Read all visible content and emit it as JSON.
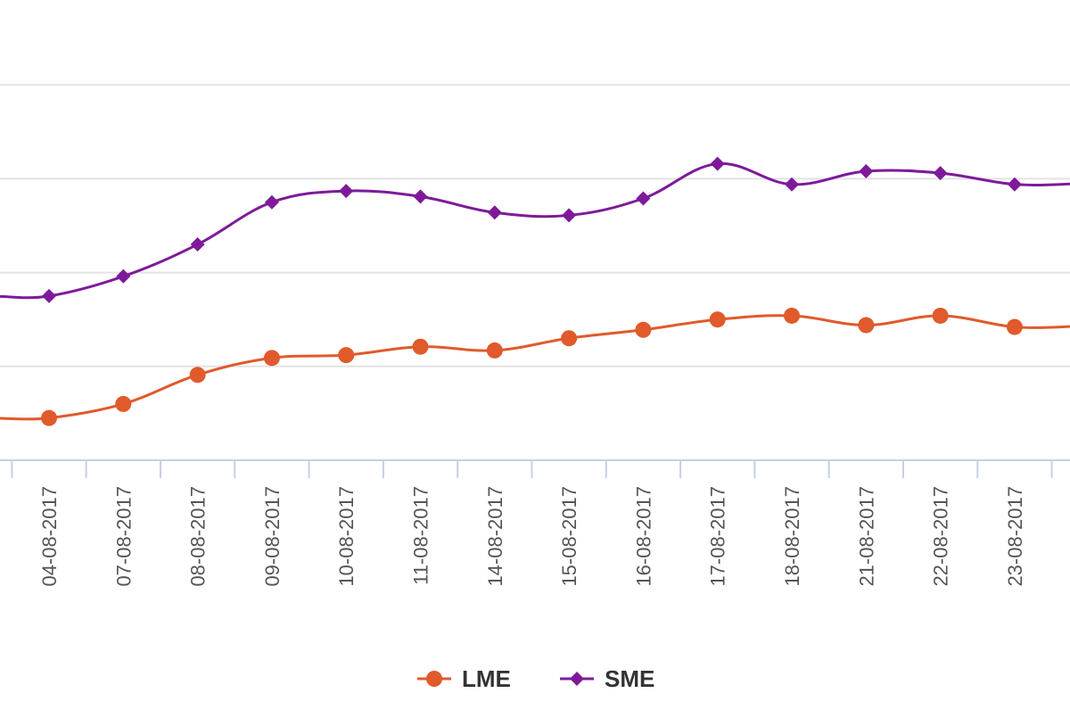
{
  "chart_data": {
    "type": "line",
    "title": "",
    "xlabel": "",
    "ylabel": "",
    "categories": [
      "04-08-2017",
      "07-08-2017",
      "08-08-2017",
      "09-08-2017",
      "10-08-2017",
      "11-08-2017",
      "14-08-2017",
      "15-08-2017",
      "16-08-2017",
      "17-08-2017",
      "18-08-2017",
      "21-08-2017",
      "22-08-2017",
      "23-08-2017"
    ],
    "grid": true,
    "legend_position": "bottom-center",
    "ylim": [
      0,
      5
    ],
    "series": [
      {
        "name": "LME",
        "color": "#e05a2b",
        "marker": "circle",
        "values": [
          0.45,
          0.6,
          0.91,
          1.09,
          1.12,
          1.21,
          1.17,
          1.3,
          1.39,
          1.5,
          1.54,
          1.44,
          1.54,
          1.42
        ]
      },
      {
        "name": "SME",
        "color": "#7e1a9a",
        "marker": "diamond",
        "values": [
          1.75,
          1.96,
          2.3,
          2.75,
          2.87,
          2.81,
          2.64,
          2.61,
          2.79,
          3.16,
          2.94,
          3.08,
          3.06,
          2.94
        ]
      }
    ]
  }
}
